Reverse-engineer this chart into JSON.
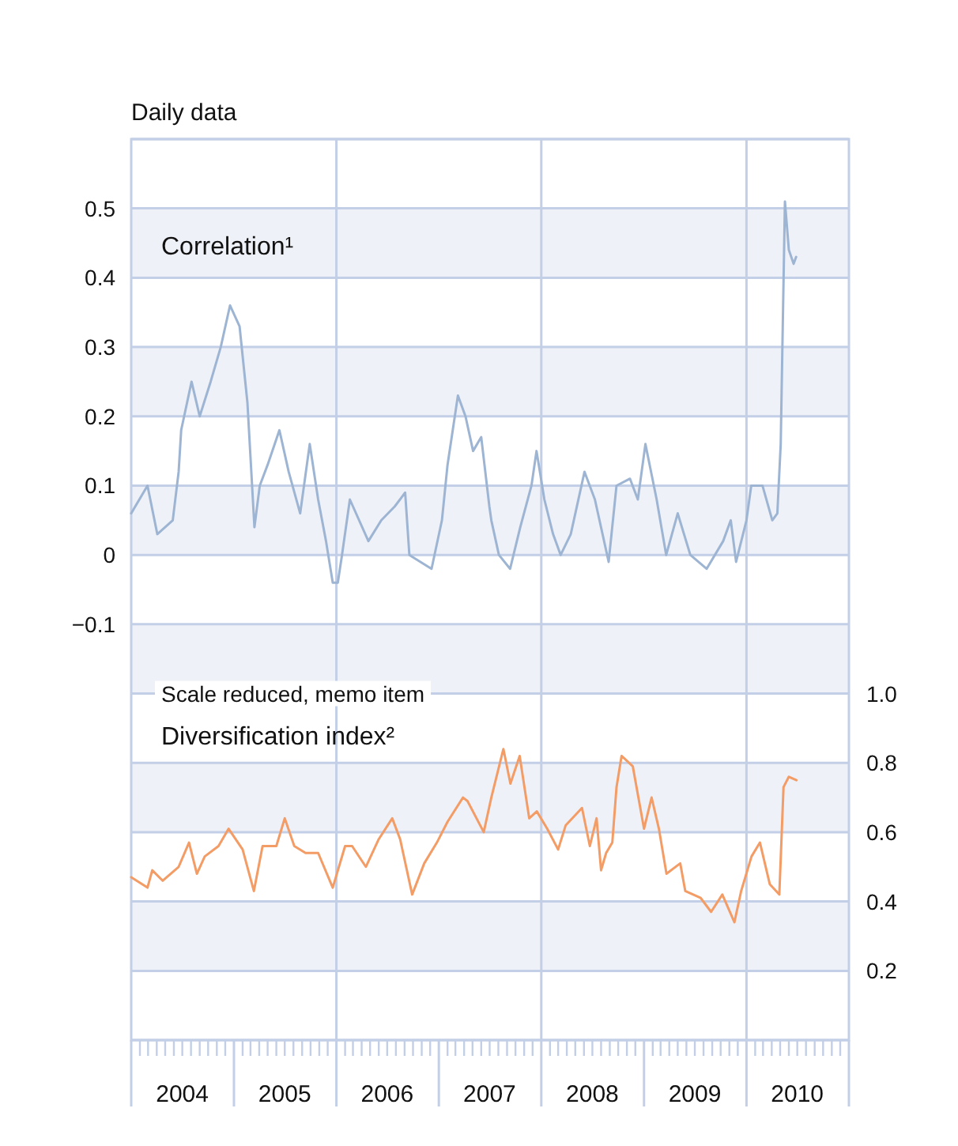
{
  "chart_data": {
    "type": "line",
    "title": "Daily data",
    "annotations": [
      "Scale reduced, memo item"
    ],
    "xlim": [
      "2004-01-01",
      "2011-01-01"
    ],
    "xticks": [
      {
        "value": "2004-01-01",
        "label": null
      },
      {
        "value": "2004-02-01",
        "label": null
      },
      {
        "value": "2004-03-01",
        "label": null
      },
      {
        "value": "2004-04-01",
        "label": null
      },
      {
        "value": "2004-05-01",
        "label": null
      },
      {
        "value": "2004-06-01",
        "label": null
      },
      {
        "value": "2004-07-01",
        "label": "2004"
      },
      {
        "value": "2004-08-01",
        "label": null
      },
      {
        "value": "2004-09-01",
        "label": null
      },
      {
        "value": "2004-10-01",
        "label": null
      },
      {
        "value": "2004-11-01",
        "label": null
      },
      {
        "value": "2004-12-01",
        "label": null
      },
      {
        "value": "2005-01-01",
        "label": null
      },
      {
        "value": "2005-02-01",
        "label": null
      },
      {
        "value": "2005-03-01",
        "label": null
      },
      {
        "value": "2005-04-01",
        "label": null
      },
      {
        "value": "2005-05-01",
        "label": null
      },
      {
        "value": "2005-06-01",
        "label": null
      },
      {
        "value": "2005-07-01",
        "label": "2005"
      },
      {
        "value": "2005-08-01",
        "label": null
      },
      {
        "value": "2005-09-01",
        "label": null
      },
      {
        "value": "2005-10-01",
        "label": null
      },
      {
        "value": "2005-11-01",
        "label": null
      },
      {
        "value": "2005-12-01",
        "label": null
      },
      {
        "value": "2006-01-01",
        "label": null
      },
      {
        "value": "2006-02-01",
        "label": null
      },
      {
        "value": "2006-03-01",
        "label": null
      },
      {
        "value": "2006-04-01",
        "label": null
      },
      {
        "value": "2006-05-01",
        "label": null
      },
      {
        "value": "2006-06-01",
        "label": null
      },
      {
        "value": "2006-07-01",
        "label": "2006"
      },
      {
        "value": "2006-08-01",
        "label": null
      },
      {
        "value": "2006-09-01",
        "label": null
      },
      {
        "value": "2006-10-01",
        "label": null
      },
      {
        "value": "2006-11-01",
        "label": null
      },
      {
        "value": "2006-12-01",
        "label": null
      },
      {
        "value": "2007-01-01",
        "label": null
      },
      {
        "value": "2007-02-01",
        "label": null
      },
      {
        "value": "2007-03-01",
        "label": null
      },
      {
        "value": "2007-04-01",
        "label": null
      },
      {
        "value": "2007-05-01",
        "label": null
      },
      {
        "value": "2007-06-01",
        "label": null
      },
      {
        "value": "2007-07-01",
        "label": "2007"
      },
      {
        "value": "2007-08-01",
        "label": null
      },
      {
        "value": "2007-09-01",
        "label": null
      },
      {
        "value": "2007-10-01",
        "label": null
      },
      {
        "value": "2007-11-01",
        "label": null
      },
      {
        "value": "2007-12-01",
        "label": null
      },
      {
        "value": "2008-01-01",
        "label": null
      },
      {
        "value": "2008-02-01",
        "label": null
      },
      {
        "value": "2008-03-01",
        "label": null
      },
      {
        "value": "2008-04-01",
        "label": null
      },
      {
        "value": "2008-05-01",
        "label": null
      },
      {
        "value": "2008-06-01",
        "label": null
      },
      {
        "value": "2008-07-01",
        "label": "2008"
      },
      {
        "value": "2008-08-01",
        "label": null
      },
      {
        "value": "2008-09-01",
        "label": null
      },
      {
        "value": "2008-10-01",
        "label": null
      },
      {
        "value": "2008-11-01",
        "label": null
      },
      {
        "value": "2008-12-01",
        "label": null
      },
      {
        "value": "2009-01-01",
        "label": null
      },
      {
        "value": "2009-02-01",
        "label": null
      },
      {
        "value": "2009-03-01",
        "label": null
      },
      {
        "value": "2009-04-01",
        "label": null
      },
      {
        "value": "2009-05-01",
        "label": null
      },
      {
        "value": "2009-06-01",
        "label": null
      },
      {
        "value": "2009-07-01",
        "label": "2009"
      },
      {
        "value": "2009-08-01",
        "label": null
      },
      {
        "value": "2009-09-01",
        "label": null
      },
      {
        "value": "2009-10-01",
        "label": null
      },
      {
        "value": "2009-11-01",
        "label": null
      },
      {
        "value": "2009-12-01",
        "label": null
      },
      {
        "value": "2010-01-01",
        "label": null
      },
      {
        "value": "2010-02-01",
        "label": null
      },
      {
        "value": "2010-03-01",
        "label": null
      },
      {
        "value": "2010-04-01",
        "label": null
      },
      {
        "value": "2010-05-01",
        "label": null
      },
      {
        "value": "2010-06-01",
        "label": null
      },
      {
        "value": "2010-07-01",
        "label": "2010"
      },
      {
        "value": "2010-08-01",
        "label": null
      },
      {
        "value": "2010-09-01",
        "label": null
      },
      {
        "value": "2010-10-01",
        "label": null
      },
      {
        "value": "2010-11-01",
        "label": null
      },
      {
        "value": "2010-12-01",
        "label": null
      },
      {
        "value": "2011-01-01",
        "label": null
      }
    ],
    "ylim": [
      -0.7,
      0.6
    ],
    "yticks": [
      {
        "value": -0.1,
        "label": "−0.1"
      },
      0,
      0.1,
      0.2,
      0.3,
      0.4,
      0.5
    ],
    "y2lim": [
      0,
      2.6
    ],
    "y2ticks": [
      0.2,
      0.4,
      0.6,
      0.8,
      {
        "value": 1,
        "label": "1.0"
      }
    ],
    "grid": true,
    "series": [
      {
        "name": "Correlation¹",
        "color": "#9db5d3",
        "x": [
          "2004-01-01",
          "2004-02-28",
          "2004-04-03",
          "2004-05-28",
          "2004-06-18",
          "2004-06-27",
          "2004-08-03",
          "2004-09-01",
          "2004-10-10",
          "2004-11-15",
          "2004-12-18",
          "2005-01-21",
          "2005-02-18",
          "2005-03-15",
          "2005-04-03",
          "2005-05-01",
          "2005-06-12",
          "2005-07-15",
          "2005-08-25",
          "2005-09-28",
          "2005-10-28",
          "2005-11-25",
          "2005-12-19",
          "2006-01-06",
          "2006-01-21",
          "2006-02-18",
          "2006-04-25",
          "2006-06-10",
          "2006-07-28",
          "2006-09-03",
          "2006-09-18",
          "2006-12-06",
          "2007-01-12",
          "2007-02-01",
          "2007-03-10",
          "2007-04-06",
          "2007-05-03",
          "2007-06-01",
          "2007-06-30",
          "2007-07-07",
          "2007-08-03",
          "2007-09-12",
          "2007-10-18",
          "2007-11-27",
          "2007-12-15",
          "2008-01-12",
          "2008-02-12",
          "2008-03-10",
          "2008-04-15",
          "2008-06-03",
          "2008-07-10",
          "2008-08-28",
          "2008-09-25",
          "2008-11-12",
          "2008-12-10",
          "2009-01-06",
          "2009-02-15",
          "2009-03-21",
          "2009-05-01",
          "2009-06-15",
          "2009-08-12",
          "2009-10-10",
          "2009-11-06",
          "2009-11-25",
          "2010-01-01",
          "2010-01-18",
          "2010-02-27",
          "2010-04-03",
          "2010-04-21",
          "2010-05-03",
          "2010-05-18",
          "2010-06-01",
          "2010-06-18",
          "2010-06-27"
        ],
        "values": [
          0.06,
          0.1,
          0.03,
          0.05,
          0.12,
          0.18,
          0.25,
          0.2,
          0.25,
          0.3,
          0.36,
          0.33,
          0.22,
          0.04,
          0.1,
          0.13,
          0.18,
          0.12,
          0.06,
          0.16,
          0.08,
          0.02,
          -0.04,
          -0.04,
          0.0,
          0.08,
          0.02,
          0.05,
          0.07,
          0.09,
          0.0,
          -0.02,
          0.05,
          0.13,
          0.23,
          0.2,
          0.15,
          0.17,
          0.07,
          0.05,
          0.0,
          -0.02,
          0.04,
          0.1,
          0.15,
          0.08,
          0.03,
          0.0,
          0.03,
          0.12,
          0.08,
          -0.01,
          0.1,
          0.11,
          0.08,
          0.16,
          0.08,
          0.0,
          0.06,
          0.0,
          -0.02,
          0.02,
          0.05,
          -0.01,
          0.05,
          0.1,
          0.1,
          0.05,
          0.06,
          0.16,
          0.51,
          0.44,
          0.42,
          0.43
        ]
      },
      {
        "name": "Diversification index²",
        "color": "#f39c66",
        "axis": "y2",
        "x": [
          "2004-01-01",
          "2004-02-28",
          "2004-03-16",
          "2004-04-22",
          "2004-06-18",
          "2004-07-25",
          "2004-08-22",
          "2004-09-19",
          "2004-11-07",
          "2004-12-13",
          "2005-02-01",
          "2005-03-13",
          "2005-04-13",
          "2005-06-01",
          "2005-07-01",
          "2005-08-04",
          "2005-09-13",
          "2005-10-28",
          "2005-12-19",
          "2006-02-01",
          "2006-02-26",
          "2006-04-16",
          "2006-06-01",
          "2006-07-19",
          "2006-08-16",
          "2006-09-28",
          "2006-11-10",
          "2006-12-25",
          "2007-02-01",
          "2007-03-28",
          "2007-04-13",
          "2007-06-10",
          "2007-07-07",
          "2007-08-19",
          "2007-09-13",
          "2007-10-16",
          "2007-11-19",
          "2007-12-16",
          "2008-01-22",
          "2008-03-01",
          "2008-03-28",
          "2008-05-25",
          "2008-06-22",
          "2008-07-16",
          "2008-08-01",
          "2008-08-19",
          "2008-09-10",
          "2008-09-25",
          "2008-10-13",
          "2008-11-22",
          "2009-01-01",
          "2009-01-28",
          "2009-02-23",
          "2009-03-22",
          "2009-05-10",
          "2009-05-28",
          "2009-07-22",
          "2009-08-28",
          "2009-10-07",
          "2009-11-19",
          "2009-12-13",
          "2010-01-19",
          "2010-02-18",
          "2010-03-25",
          "2010-04-28",
          "2010-05-13",
          "2010-06-01",
          "2010-06-28"
        ],
        "values": [
          0.47,
          0.44,
          0.49,
          0.46,
          0.5,
          0.57,
          0.48,
          0.53,
          0.56,
          0.61,
          0.55,
          0.43,
          0.56,
          0.56,
          0.64,
          0.56,
          0.54,
          0.54,
          0.44,
          0.56,
          0.56,
          0.5,
          0.58,
          0.64,
          0.58,
          0.42,
          0.51,
          0.57,
          0.63,
          0.7,
          0.69,
          0.6,
          0.7,
          0.84,
          0.74,
          0.82,
          0.64,
          0.66,
          0.61,
          0.55,
          0.62,
          0.67,
          0.56,
          0.64,
          0.49,
          0.54,
          0.57,
          0.73,
          0.82,
          0.79,
          0.61,
          0.7,
          0.61,
          0.48,
          0.51,
          0.43,
          0.41,
          0.37,
          0.42,
          0.34,
          0.43,
          0.53,
          0.57,
          0.45,
          0.42,
          0.73,
          0.76,
          0.75
        ]
      }
    ]
  }
}
